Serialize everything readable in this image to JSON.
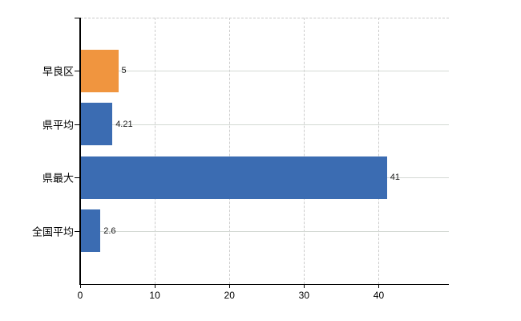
{
  "chart_data": {
    "type": "bar",
    "orientation": "horizontal",
    "title": "",
    "categories": [
      "早良区",
      "県平均",
      "県最大",
      "全国平均"
    ],
    "values": [
      5,
      4.21,
      41,
      2.6
    ],
    "value_labels": [
      "5",
      "4.21",
      "41",
      "2.6"
    ],
    "bar_colors": [
      "#f0953f",
      "#3b6cb2",
      "#3b6cb2",
      "#3b6cb2"
    ],
    "x_ticks": [
      0,
      10,
      20,
      30,
      40
    ],
    "x_tick_labels": [
      "0",
      "10",
      "20",
      "30",
      "40"
    ],
    "xlim": [
      0,
      49.4
    ],
    "grid": "dashed vertical lines at x ticks, solid horizontal lines at category centers, dashed top border",
    "legend": "none"
  },
  "colors": {
    "bar_orange": "#f0953f",
    "bar_blue": "#3b6cb2",
    "axis": "#000000",
    "grid_vertical": "#cccccc",
    "grid_horizontal": "#d4d9d4",
    "value_text": "#1a1a1a",
    "background": "#ffffff"
  }
}
